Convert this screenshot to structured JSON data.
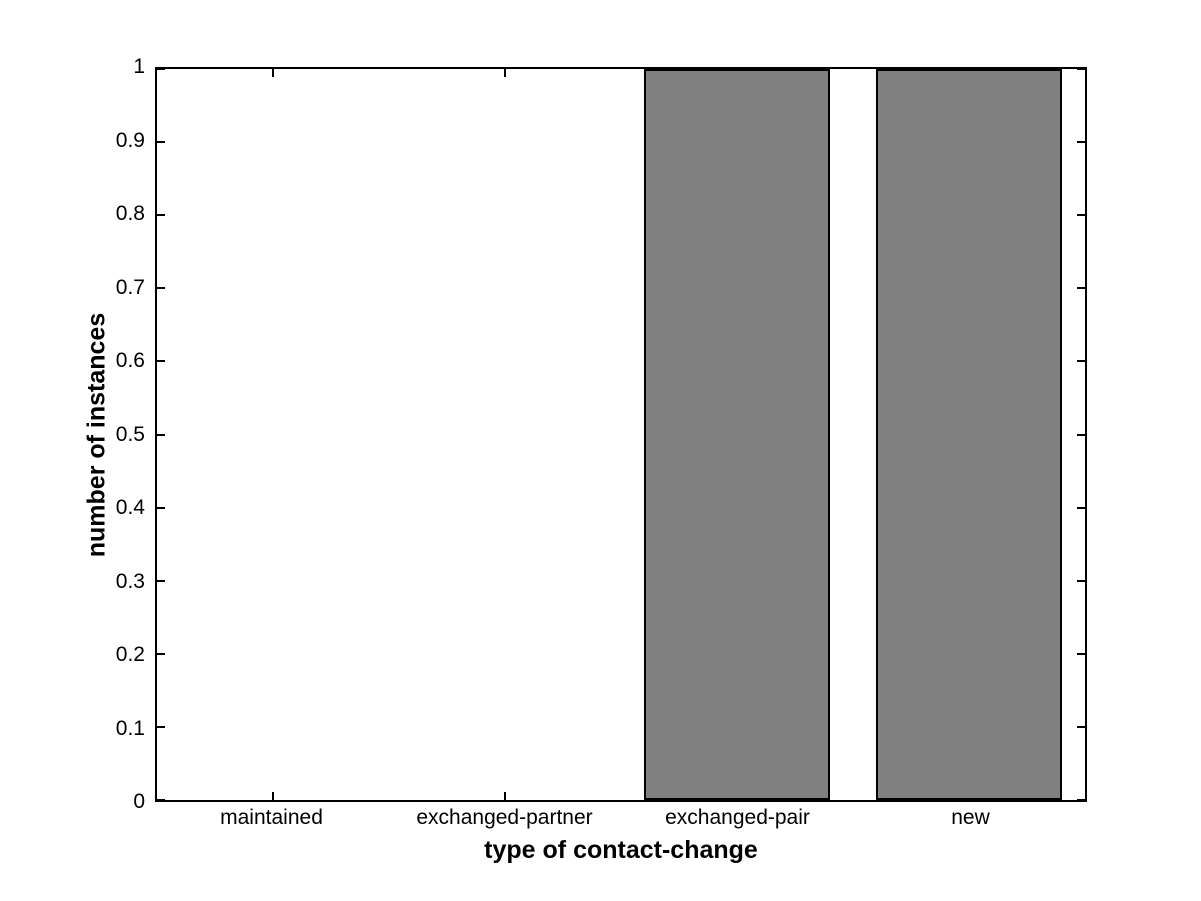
{
  "chart_data": {
    "type": "bar",
    "title": "",
    "categories": [
      "maintained",
      "exchanged-partner",
      "exchanged-pair",
      "new"
    ],
    "values": [
      0,
      0,
      1,
      1
    ],
    "xlabel": "type of contact-change",
    "ylabel": "number of instances",
    "xlim": [
      0.5,
      4.5
    ],
    "ylim": [
      0,
      1
    ],
    "yticks": [
      0,
      0.1,
      0.2,
      0.3,
      0.4,
      0.5,
      0.6,
      0.7,
      0.8,
      0.9,
      1
    ],
    "ytick_labels": [
      "0",
      "0.1",
      "0.2",
      "0.3",
      "0.4",
      "0.5",
      "0.6",
      "0.7",
      "0.8",
      "0.9",
      "1"
    ],
    "bar_width_fraction": 0.8,
    "bar_color": "#808080",
    "bar_edge_color": "#000000",
    "axis_color": "#000000",
    "background_color": "#ffffff",
    "grid": false,
    "legend": null,
    "tick_direction": "in",
    "box": true
  }
}
